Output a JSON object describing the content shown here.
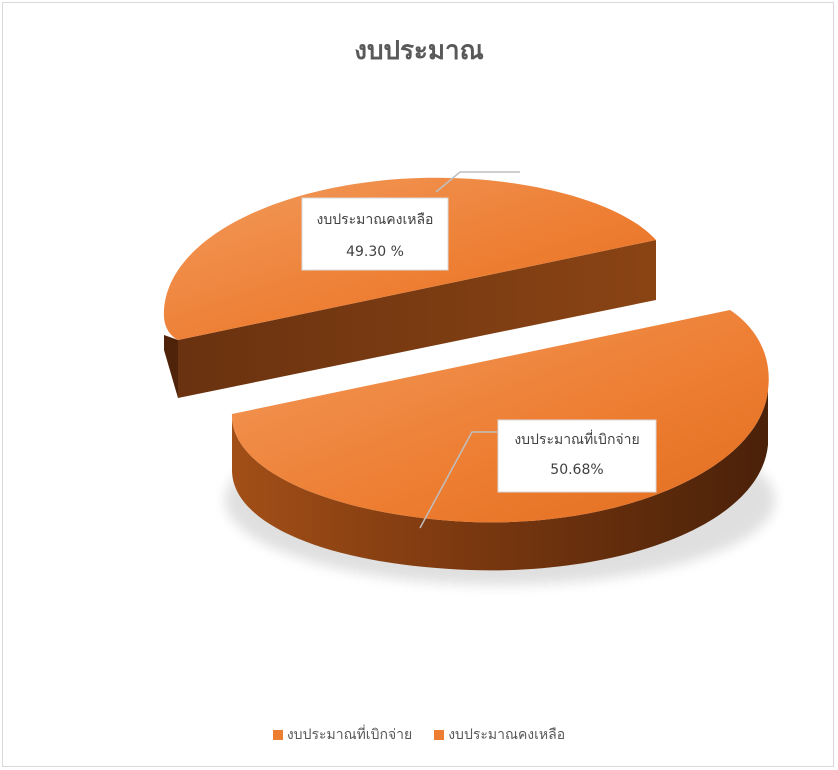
{
  "chart_data": {
    "type": "pie",
    "title": "งบประมาณ",
    "categories": [
      "งบประมาณที่เบิกจ่าย",
      "งบประมาณคงเหลือ"
    ],
    "values": [
      50.68,
      49.3
    ],
    "data_labels": [
      {
        "name": "งบประมาณที่เบิกจ่าย",
        "value": "50.68%"
      },
      {
        "name": "งบประมาณคงเหลือ",
        "value": "49.30 %"
      }
    ],
    "style": "3d-exploded",
    "legend_position": "bottom",
    "colors": {
      "slice": "#ED7D31",
      "slice_light": "#F4A46A",
      "side_dark": "#5E2B0A",
      "side_mid": "#8B4512"
    }
  }
}
